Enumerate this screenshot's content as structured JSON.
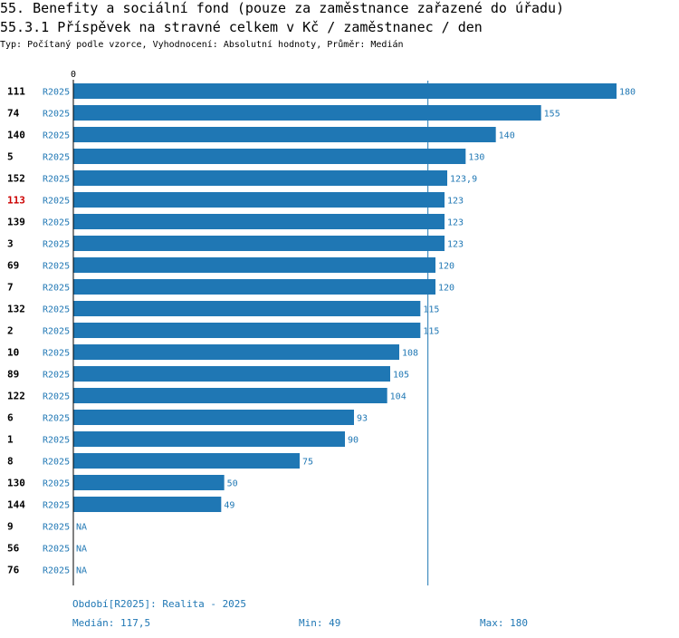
{
  "header": {
    "title": "55. Benefity a sociální fond (pouze za zaměstnance zařazené do úřadu)",
    "subtitle": "55.3.1 Příspěvek na stravné celkem v Kč / zaměstnanec / den",
    "meta": "Typ: Počítaný podle vzorce, Vyhodnocení: Absolutní hodnoty, Průměr: Medián"
  },
  "chart_data": {
    "type": "bar",
    "orientation": "horizontal",
    "title": "55.3.1 Příspěvek na stravné celkem v Kč / zaměstnanec / den",
    "axis_zero_label": "0",
    "xlim": [
      0,
      180
    ],
    "median": 117.5,
    "period_label": "R2025",
    "bar_color": "#1f77b4",
    "highlight_color": "#cc0000",
    "highlighted_id": "113",
    "ids": [
      "111",
      "74",
      "140",
      "5",
      "152",
      "113",
      "139",
      "3",
      "69",
      "7",
      "132",
      "2",
      "10",
      "89",
      "122",
      "6",
      "1",
      "8",
      "130",
      "144",
      "9",
      "56",
      "76"
    ],
    "values": [
      180,
      155,
      140,
      130,
      123.9,
      123,
      123,
      123,
      120,
      120,
      115,
      115,
      108,
      105,
      104,
      93,
      90,
      75,
      50,
      49,
      null,
      null,
      null
    ],
    "value_labels": [
      "180",
      "155",
      "140",
      "130",
      "123,9",
      "123",
      "123",
      "123",
      "120",
      "120",
      "115",
      "115",
      "108",
      "105",
      "104",
      "93",
      "90",
      "75",
      "50",
      "49",
      "NA",
      "NA",
      "NA"
    ]
  },
  "footer": {
    "period": "Období[R2025]: Realita - 2025",
    "median": "Medián: 117,5",
    "min": "Min: 49",
    "max": "Max: 180"
  }
}
